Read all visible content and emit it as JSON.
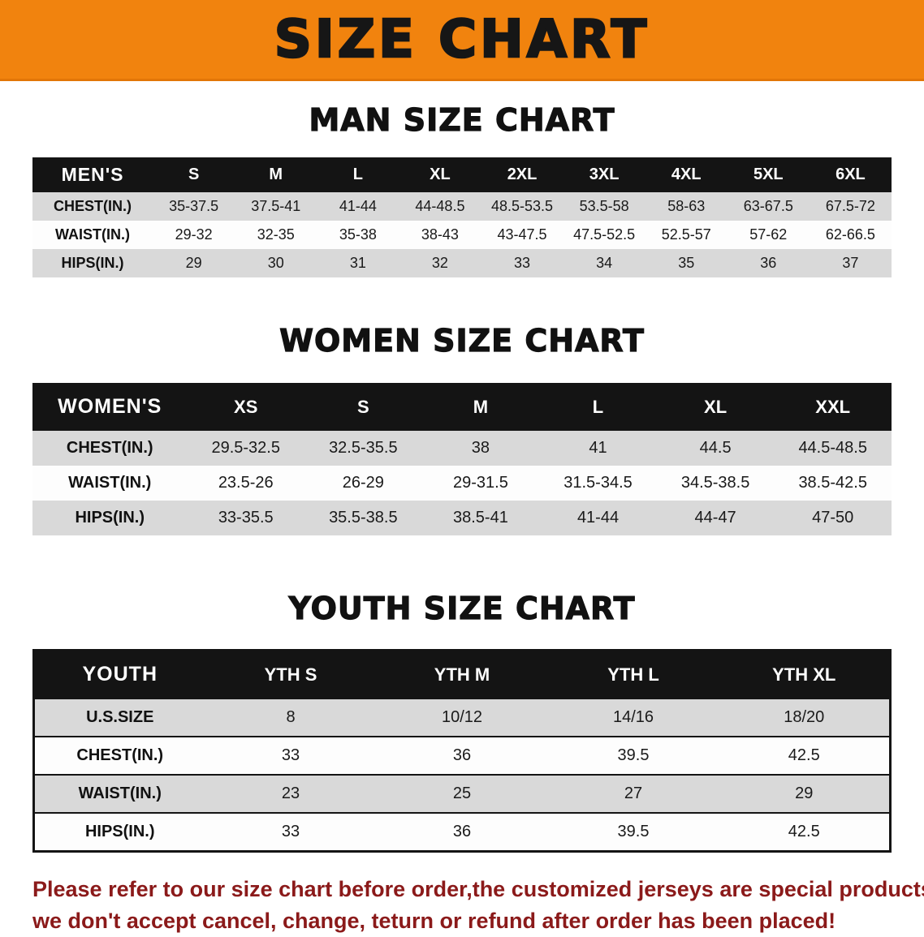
{
  "banner": {
    "title": "SIZE CHART"
  },
  "sections": [
    {
      "title": "MAN SIZE CHART",
      "table": {
        "header": [
          "MEN'S",
          "S",
          "M",
          "L",
          "XL",
          "2XL",
          "3XL",
          "4XL",
          "5XL",
          "6XL"
        ],
        "rows": [
          [
            "CHEST(IN.)",
            "35-37.5",
            "37.5-41",
            "41-44",
            "44-48.5",
            "48.5-53.5",
            "53.5-58",
            "58-63",
            "63-67.5",
            "67.5-72"
          ],
          [
            "WAIST(IN.)",
            "29-32",
            "32-35",
            "35-38",
            "38-43",
            "43-47.5",
            "47.5-52.5",
            "52.5-57",
            "57-62",
            "62-66.5"
          ],
          [
            "HIPS(IN.)",
            "29",
            "30",
            "31",
            "32",
            "33",
            "34",
            "35",
            "36",
            "37"
          ]
        ]
      }
    },
    {
      "title": "WOMEN SIZE CHART",
      "table": {
        "header": [
          "WOMEN'S",
          "XS",
          "S",
          "M",
          "L",
          "XL",
          "XXL"
        ],
        "rows": [
          [
            "CHEST(IN.)",
            "29.5-32.5",
            "32.5-35.5",
            "38",
            "41",
            "44.5",
            "44.5-48.5"
          ],
          [
            "WAIST(IN.)",
            "23.5-26",
            "26-29",
            "29-31.5",
            "31.5-34.5",
            "34.5-38.5",
            "38.5-42.5"
          ],
          [
            "HIPS(IN.)",
            "33-35.5",
            "35.5-38.5",
            "38.5-41",
            "41-44",
            "44-47",
            "47-50"
          ]
        ]
      }
    },
    {
      "title": "YOUTH SIZE CHART",
      "table": {
        "header": [
          "YOUTH",
          "YTH S",
          "YTH M",
          "YTH L",
          "YTH XL"
        ],
        "rows": [
          [
            "U.S.SIZE",
            "8",
            "10/12",
            "14/16",
            "18/20"
          ],
          [
            "CHEST(IN.)",
            "33",
            "36",
            "39.5",
            "42.5"
          ],
          [
            "WAIST(IN.)",
            "23",
            "25",
            "27",
            "29"
          ],
          [
            "HIPS(IN.)",
            "33",
            "36",
            "39.5",
            "42.5"
          ]
        ]
      }
    }
  ],
  "disclaimer": {
    "line1": "Please refer to our size chart before order,the customized jerseys are special products,",
    "line2": "we don't accept cancel, change, teturn or refund after order has been placed!"
  },
  "colors": {
    "banner_bg": "#F1830E",
    "header_bg": "#141414",
    "row_alt": "#d9d9d9",
    "disclaimer": "#8B1A1A"
  }
}
